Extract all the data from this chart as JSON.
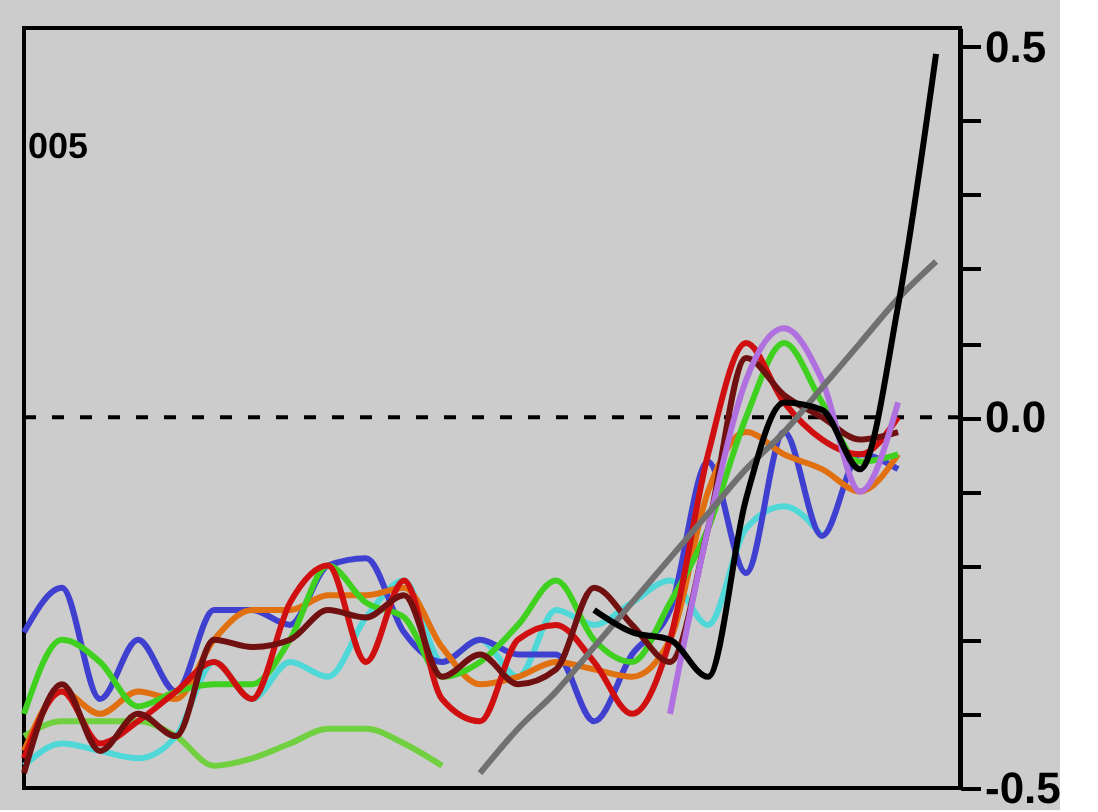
{
  "chart_data": {
    "type": "line",
    "categories": [
      null,
      null,
      null,
      null,
      null,
      null,
      null,
      null,
      null,
      null,
      null,
      null,
      null,
      null,
      null,
      null,
      null,
      null,
      null,
      null,
      null,
      null,
      null,
      null,
      null
    ],
    "series": [
      {
        "color": "#70d040",
        "values": [
          -0.43,
          -0.41,
          -0.41,
          -0.41,
          -0.43,
          -0.47,
          -0.46,
          -0.44,
          -0.42,
          -0.42,
          -0.44,
          -0.47,
          null,
          null,
          null,
          null,
          null,
          null,
          null,
          null,
          null,
          null,
          null,
          null,
          null
        ]
      },
      {
        "color": "#50d8d8",
        "values": [
          -0.47,
          -0.44,
          -0.45,
          -0.46,
          -0.43,
          -0.33,
          -0.38,
          -0.33,
          -0.35,
          -0.27,
          -0.22,
          -0.33,
          -0.3,
          -0.35,
          -0.26,
          -0.28,
          -0.25,
          -0.22,
          -0.28,
          -0.15,
          -0.12,
          -0.16,
          null,
          null,
          null
        ]
      },
      {
        "color": "#4040d0",
        "values": [
          -0.29,
          -0.23,
          -0.38,
          -0.3,
          -0.37,
          -0.26,
          -0.26,
          -0.28,
          -0.2,
          -0.19,
          -0.29,
          -0.33,
          -0.3,
          -0.32,
          -0.32,
          -0.41,
          -0.32,
          -0.26,
          -0.06,
          -0.21,
          -0.02,
          -0.16,
          -0.05,
          -0.07,
          null
        ]
      },
      {
        "color": "#e07010",
        "values": [
          -0.45,
          -0.37,
          -0.4,
          -0.37,
          -0.38,
          -0.3,
          -0.26,
          -0.26,
          -0.24,
          -0.24,
          -0.23,
          -0.31,
          -0.36,
          -0.35,
          -0.33,
          -0.34,
          -0.35,
          -0.3,
          -0.1,
          -0.02,
          -0.05,
          -0.07,
          -0.1,
          -0.05,
          null
        ]
      },
      {
        "color": "#40d020",
        "values": [
          -0.4,
          -0.3,
          -0.33,
          -0.39,
          -0.37,
          -0.36,
          -0.36,
          -0.3,
          -0.2,
          -0.25,
          -0.27,
          -0.35,
          -0.33,
          -0.28,
          -0.22,
          -0.3,
          -0.33,
          -0.25,
          -0.15,
          0.0,
          0.1,
          0.02,
          -0.06,
          -0.05,
          null
        ]
      },
      {
        "color": "#d01010",
        "values": [
          -0.46,
          -0.37,
          -0.44,
          -0.41,
          -0.37,
          -0.33,
          -0.38,
          -0.25,
          -0.2,
          -0.33,
          -0.22,
          -0.38,
          -0.41,
          -0.3,
          -0.28,
          -0.33,
          -0.4,
          -0.3,
          -0.05,
          0.1,
          0.02,
          -0.03,
          -0.05,
          0.0,
          null
        ]
      },
      {
        "color": "#701010",
        "values": [
          -0.48,
          -0.36,
          -0.45,
          -0.4,
          -0.43,
          -0.3,
          -0.31,
          -0.3,
          -0.26,
          -0.27,
          -0.24,
          -0.35,
          -0.32,
          -0.36,
          -0.34,
          -0.23,
          -0.28,
          -0.33,
          -0.15,
          0.08,
          0.03,
          0.0,
          -0.03,
          -0.02,
          null
        ]
      },
      {
        "color": "#b070e0",
        "values": [
          null,
          null,
          null,
          null,
          null,
          null,
          null,
          null,
          null,
          null,
          null,
          null,
          null,
          null,
          null,
          null,
          null,
          -0.4,
          -0.15,
          0.05,
          0.12,
          0.05,
          -0.1,
          0.02,
          null
        ]
      },
      {
        "color": "#707070",
        "values": [
          null,
          null,
          null,
          null,
          null,
          null,
          null,
          null,
          null,
          null,
          null,
          null,
          -0.48,
          -0.42,
          -0.37,
          -0.31,
          -0.25,
          -0.19,
          -0.13,
          -0.07,
          -0.02,
          0.04,
          0.1,
          0.16,
          0.21
        ]
      },
      {
        "color": "#000000",
        "values": [
          null,
          null,
          null,
          null,
          null,
          null,
          null,
          null,
          null,
          null,
          null,
          null,
          null,
          null,
          null,
          -0.26,
          -0.29,
          -0.3,
          -0.35,
          -0.11,
          0.02,
          0.01,
          -0.07,
          0.15,
          0.49
        ]
      }
    ],
    "ylim": [
      -0.5,
      0.525
    ],
    "yticks": [
      {
        "value": -0.5,
        "label": "-0.5"
      },
      {
        "value": -0.4,
        "label": null
      },
      {
        "value": -0.3,
        "label": null
      },
      {
        "value": -0.2,
        "label": null
      },
      {
        "value": -0.1,
        "label": null
      },
      {
        "value": 0,
        "label": "0.0"
      },
      {
        "value": 0.1,
        "label": null
      },
      {
        "value": 0.2,
        "label": null
      },
      {
        "value": 0.3,
        "label": null
      },
      {
        "value": 0.4,
        "label": null
      },
      {
        "value": 0.5,
        "label": "0.5"
      }
    ],
    "ref_lines": [
      {
        "axis": "y",
        "value": 0,
        "color": "#000000",
        "line_style": "dashed"
      }
    ],
    "annotations": [
      "005"
    ],
    "tick_labels": "y",
    "grid": false
  }
}
